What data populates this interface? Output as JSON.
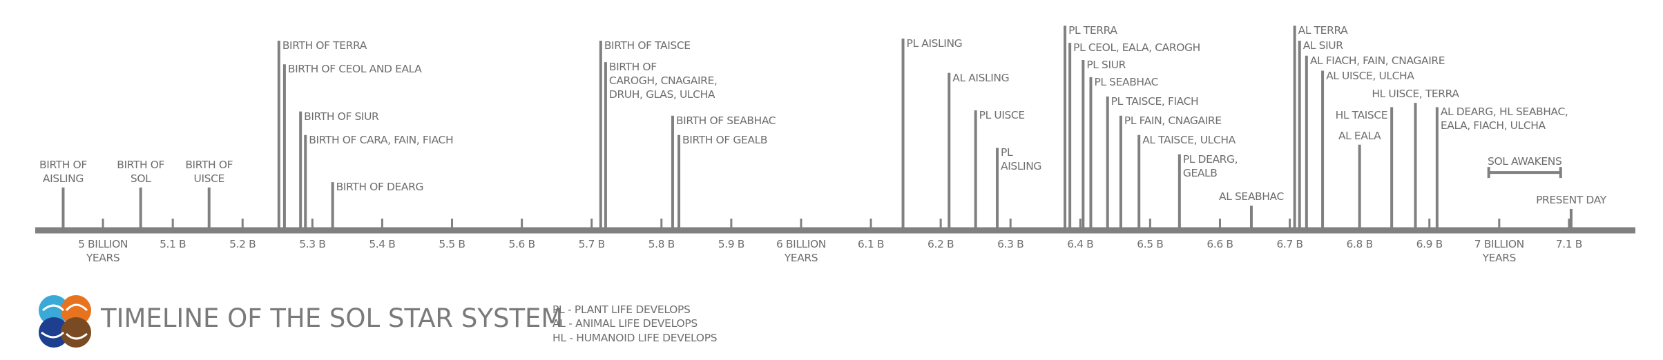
{
  "chart_data": {
    "type": "timeline",
    "title": "TIMELINE OF THE SOL STAR SYSTEM",
    "legend": [
      "PL - PLANT LIFE DEVELOPS",
      "AL - ANIMAL LIFE DEVELOPS",
      "HL - HUMANOID LIFE DEVELOPS"
    ],
    "color": "#808080",
    "xlim": [
      4.9,
      7.2
    ],
    "xticks": [
      {
        "value": 5,
        "label": "5 BILLION\nYEARS"
      },
      {
        "value": 5.1,
        "label": "5.1 B"
      },
      {
        "value": 5.2,
        "label": "5.2 B"
      },
      {
        "value": 5.3,
        "label": "5.3 B"
      },
      {
        "value": 5.4,
        "label": "5.4 B"
      },
      {
        "value": 5.5,
        "label": "5.5 B"
      },
      {
        "value": 5.6,
        "label": "5.6 B"
      },
      {
        "value": 5.7,
        "label": "5.7 B"
      },
      {
        "value": 5.8,
        "label": "5.8 B"
      },
      {
        "value": 5.9,
        "label": "5.9 B"
      },
      {
        "value": 6,
        "label": "6 BILLION\nYEARS"
      },
      {
        "value": 6.1,
        "label": "6.1 B"
      },
      {
        "value": 6.2,
        "label": "6.2 B"
      },
      {
        "value": 6.3,
        "label": "6.3 B"
      },
      {
        "value": 6.4,
        "label": "6.4 B"
      },
      {
        "value": 6.5,
        "label": "6.5 B"
      },
      {
        "value": 6.6,
        "label": "6.6 B"
      },
      {
        "value": 6.7,
        "label": "6.7 B"
      },
      {
        "value": 6.8,
        "label": "6.8 B"
      },
      {
        "value": 6.9,
        "label": "6.9 B"
      },
      {
        "value": 7,
        "label": "7 BILLION\nYEARS"
      },
      {
        "value": 7.1,
        "label": "7.1 B"
      }
    ],
    "events": [
      {
        "label": "BIRTH OF\nAISLING",
        "x": 4.943
      },
      {
        "label": "BIRTH OF\nSOL",
        "x": 5.054
      },
      {
        "label": "BIRTH OF\nUISCE",
        "x": 5.152
      },
      {
        "label": "BIRTH OF TERRA",
        "x": 5.252
      },
      {
        "label": "BIRTH OF CEOL AND EALA",
        "x": 5.26
      },
      {
        "label": "BIRTH OF SIUR",
        "x": 5.283
      },
      {
        "label": "BIRTH OF CARA, FAIN, FIACH",
        "x": 5.29
      },
      {
        "label": "BIRTH OF DEARG",
        "x": 5.329
      },
      {
        "label": "BIRTH OF TAISCE",
        "x": 5.713
      },
      {
        "label": "BIRTH OF\nCAROGH, CNAGAIRE,\nDRUH, GLAS, ULCHA",
        "x": 5.72
      },
      {
        "label": "BIRTH OF SEABHAC",
        "x": 5.816
      },
      {
        "label": "BIRTH OF GEALB",
        "x": 5.825
      },
      {
        "label": "PL AISLING",
        "x": 6.146
      },
      {
        "label": "AL AISLING",
        "x": 6.212
      },
      {
        "label": "PL UISCE",
        "x": 6.25
      },
      {
        "label": "PL\nAISLING",
        "x": 6.281
      },
      {
        "label": "PL TERRA",
        "x": 6.378
      },
      {
        "label": "PL CEOL, EALA, CAROGH",
        "x": 6.385
      },
      {
        "label": "PL SIUR",
        "x": 6.404
      },
      {
        "label": "PL SEABHAC",
        "x": 6.415
      },
      {
        "label": "PL TAISCE, FIACH",
        "x": 6.439
      },
      {
        "label": "PL FAIN, CNAGAIRE",
        "x": 6.458
      },
      {
        "label": "AL TAISCE, ULCHA",
        "x": 6.484
      },
      {
        "label": "PL DEARG,\nGEALB",
        "x": 6.542
      },
      {
        "label": "AL SEABHAC",
        "x": 6.645
      },
      {
        "label": "AL TERRA",
        "x": 6.707
      },
      {
        "label": "AL SIUR",
        "x": 6.714
      },
      {
        "label": "AL FIACH, FAIN, CNAGAIRE",
        "x": 6.724
      },
      {
        "label": "AL UISCE, ULCHA",
        "x": 6.747
      },
      {
        "label": "AL EALA",
        "x": 6.8
      },
      {
        "label": "HL TAISCE",
        "x": 6.846
      },
      {
        "label": "HL UISCE, TERRA",
        "x": 6.88
      },
      {
        "label": "AL DEARG, HL SEABHAC,\nEALA, FIACH, ULCHA",
        "x": 6.911
      },
      {
        "label": "PRESENT DAY",
        "x": 7.103
      }
    ],
    "ranges": [
      {
        "label": "SOL AWAKENS",
        "x": [
          6.985,
          7.088
        ]
      }
    ]
  }
}
